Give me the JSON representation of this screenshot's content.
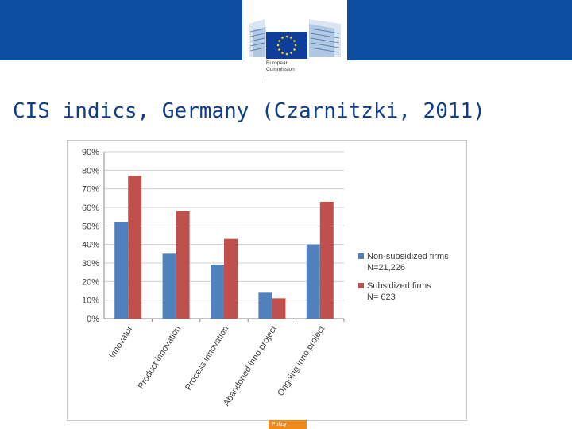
{
  "header": {
    "logo_line1": "European",
    "logo_line2": "Commission",
    "brand_color": "#0d4ea1"
  },
  "slide": {
    "title": "CIS indics, Germany (Czarnitzki, 2011)"
  },
  "footer": {
    "tab_label": "Policy",
    "tab_color": "#f08a1c"
  },
  "chart_data": {
    "type": "bar",
    "categories": [
      "innovator",
      "Product innovation",
      "Process innovation",
      "Abandoned inno project",
      "Ongoing inno project"
    ],
    "series": [
      {
        "name": "Non-subsidized firms",
        "sublabel": "N=21,226",
        "color": "#4f81bd",
        "values": [
          0.52,
          0.35,
          0.29,
          0.14,
          0.4
        ]
      },
      {
        "name": "Subsidized firms",
        "sublabel": "N= 623",
        "color": "#c0504d",
        "values": [
          0.77,
          0.58,
          0.43,
          0.11,
          0.63
        ]
      }
    ],
    "yticks": [
      "0%",
      "10%",
      "20%",
      "30%",
      "40%",
      "50%",
      "60%",
      "70%",
      "80%",
      "90%"
    ],
    "ylim": [
      0,
      0.9
    ],
    "grid": true,
    "legend": "right"
  }
}
